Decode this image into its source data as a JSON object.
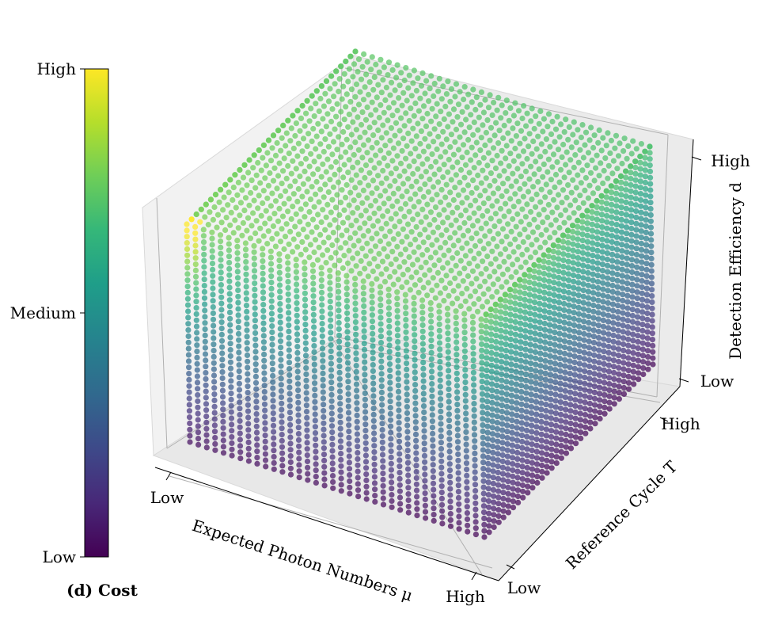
{
  "chart_data": {
    "type": "scatter",
    "dimensions": "3d",
    "caption": "(d) Cost",
    "xlabel": "Expected Photon Numbers μ",
    "ylabel": "Reference Cycle T",
    "zlabel": "Detection Efficiency d",
    "x_ticks": [
      "Low",
      "High"
    ],
    "y_ticks": [
      "Low",
      "High"
    ],
    "z_ticks": [
      "Low",
      "High"
    ],
    "xlim": [
      0,
      1
    ],
    "ylim": [
      0,
      1
    ],
    "zlim": [
      0,
      1
    ],
    "grid": true,
    "colormap": "viridis",
    "colormap_stops": [
      "#440154",
      "#482878",
      "#3e4989",
      "#31688e",
      "#26828e",
      "#1f9e89",
      "#35b779",
      "#6ece58",
      "#b5de2b",
      "#fde725"
    ],
    "color_variable": "Cost",
    "colorbar": {
      "label": "(d) Cost",
      "ticks": [
        "Low",
        "Medium",
        "High"
      ],
      "tick_values": [
        0,
        0.5,
        1
      ]
    },
    "grid_points_per_axis": 50,
    "cost_trend": "cost rises with Detection Efficiency d; highest at low μ, low T, high d (yellow corner)"
  }
}
